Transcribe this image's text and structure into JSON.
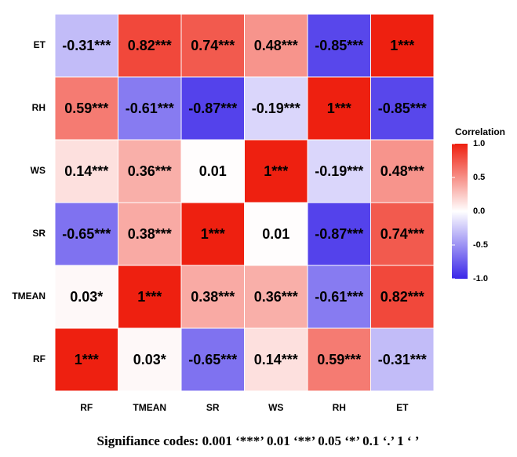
{
  "chart_data": {
    "type": "heatmap",
    "x_categories": [
      "RF",
      "TMEAN",
      "SR",
      "WS",
      "RH",
      "ET"
    ],
    "y_categories": [
      "ET",
      "RH",
      "WS",
      "SR",
      "TMEAN",
      "RF"
    ],
    "values": [
      [
        -0.31,
        0.82,
        0.74,
        0.48,
        -0.85,
        1
      ],
      [
        0.59,
        -0.61,
        -0.87,
        -0.19,
        1,
        -0.85
      ],
      [
        0.14,
        0.36,
        0.01,
        1,
        -0.19,
        0.48
      ],
      [
        -0.65,
        0.38,
        1,
        0.01,
        -0.87,
        0.74
      ],
      [
        0.03,
        1,
        0.38,
        0.36,
        -0.61,
        0.82
      ],
      [
        1,
        0.03,
        -0.65,
        0.14,
        0.59,
        -0.31
      ]
    ],
    "value_labels": [
      [
        "-0.31***",
        "0.82***",
        "0.74***",
        "0.48***",
        "-0.85***",
        "1***"
      ],
      [
        "0.59***",
        "-0.61***",
        "-0.87***",
        "-0.19***",
        "1***",
        "-0.85***"
      ],
      [
        "0.14***",
        "0.36***",
        "0.01",
        "1***",
        "-0.19***",
        "0.48***"
      ],
      [
        "-0.65***",
        "0.38***",
        "1***",
        "0.01",
        "-0.87***",
        "0.74***"
      ],
      [
        "0.03*",
        "1***",
        "0.38***",
        "0.36***",
        "-0.61***",
        "0.82***"
      ],
      [
        "1***",
        "0.03*",
        "-0.65***",
        "0.14***",
        "0.59***",
        "-0.31***"
      ]
    ],
    "colorbar_title": "Correlation",
    "clim": [
      -1,
      1
    ],
    "cticks": [
      {
        "value": 1,
        "label": "1.0"
      },
      0.5,
      {
        "value": 0,
        "label": "0.0"
      },
      -0.5,
      {
        "value": -1,
        "label": "-1.0"
      }
    ],
    "colors": {
      "low": "#3a26e8",
      "mid": "#ffffff",
      "high": "#ee2010"
    },
    "caption": "Signifiance codes: 0.001 ‘***’ 0.01 ‘**’ 0.05 ‘*’ 0.1 ‘.’ 1 ‘ ’"
  }
}
